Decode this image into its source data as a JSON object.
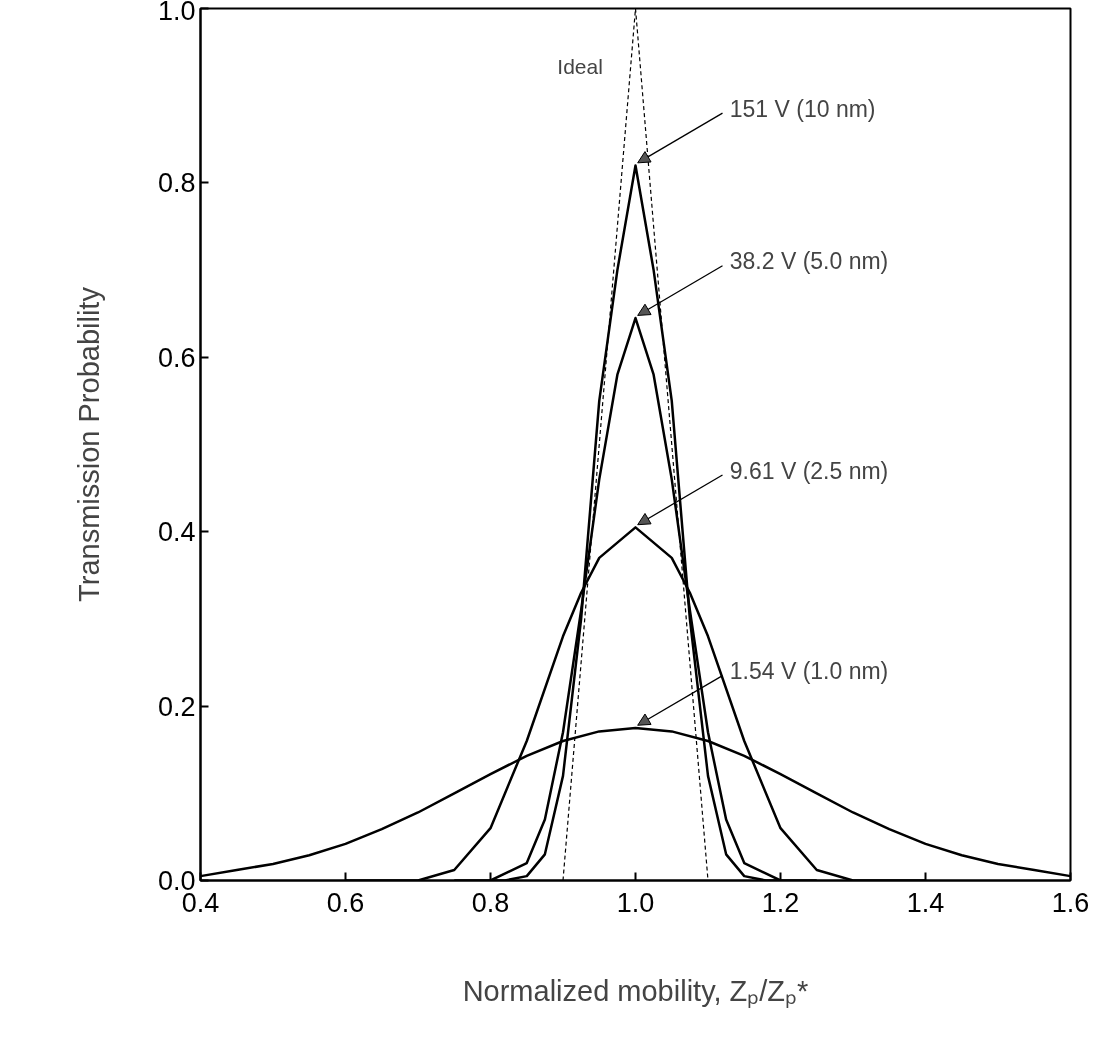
{
  "chart_data": {
    "type": "line",
    "xlabel": "Normalized mobility, Zₚ/Zₚ*",
    "ylabel": "Transmission Probability",
    "xlim": [
      0.4,
      1.6
    ],
    "ylim": [
      0,
      1.0
    ],
    "xticks": [
      0.4,
      0.6,
      0.8,
      {
        "value": 1,
        "label": "1.0"
      },
      1.2,
      1.4,
      1.6
    ],
    "yticks": [
      {
        "value": 0,
        "label": "0.0"
      },
      0.2,
      0.4,
      0.6,
      0.8,
      {
        "value": 1,
        "label": "1.0"
      }
    ],
    "grid": false,
    "legend": false,
    "series": [
      {
        "name": "Ideal",
        "color": "#000000",
        "line_style": "dashed",
        "x": [
          0.9,
          1.0,
          1.1
        ],
        "values": [
          0,
          1.0,
          0
        ]
      },
      {
        "name": "151 V (10 nm)",
        "color": "#000000",
        "line_style": "solid",
        "x": [
          0.8,
          0.82,
          0.85,
          0.875,
          0.9,
          0.925,
          0.95,
          0.975,
          1.0,
          1.025,
          1.05,
          1.075,
          1.1,
          1.125,
          1.15,
          1.18,
          1.2
        ],
        "values": [
          0,
          0,
          0.005,
          0.03,
          0.12,
          0.3,
          0.55,
          0.7,
          0.82,
          0.7,
          0.55,
          0.3,
          0.12,
          0.03,
          0.005,
          0,
          0
        ]
      },
      {
        "name": "38.2 V (5.0 nm)",
        "color": "#000000",
        "line_style": "solid",
        "x": [
          0.75,
          0.8,
          0.85,
          0.875,
          0.9,
          0.925,
          0.95,
          0.975,
          1.0,
          1.025,
          1.05,
          1.075,
          1.1,
          1.125,
          1.15,
          1.2,
          1.25
        ],
        "values": [
          0,
          0,
          0.02,
          0.07,
          0.17,
          0.31,
          0.46,
          0.58,
          0.645,
          0.58,
          0.46,
          0.31,
          0.17,
          0.07,
          0.02,
          0,
          0
        ]
      },
      {
        "name": "9.61 V (2.5 nm)",
        "color": "#000000",
        "line_style": "solid",
        "x": [
          0.6,
          0.7,
          0.75,
          0.8,
          0.85,
          0.9,
          0.925,
          0.95,
          1.0,
          1.05,
          1.075,
          1.1,
          1.15,
          1.2,
          1.25,
          1.3,
          1.4
        ],
        "values": [
          0,
          0,
          0.012,
          0.06,
          0.16,
          0.28,
          0.33,
          0.37,
          0.405,
          0.37,
          0.33,
          0.28,
          0.16,
          0.06,
          0.012,
          0,
          0
        ]
      },
      {
        "name": "1.54 V (1.0 nm)",
        "color": "#000000",
        "line_style": "solid",
        "x": [
          0.4,
          0.45,
          0.5,
          0.55,
          0.6,
          0.65,
          0.7,
          0.75,
          0.8,
          0.85,
          0.9,
          0.95,
          1.0,
          1.05,
          1.1,
          1.15,
          1.2,
          1.25,
          1.3,
          1.35,
          1.4,
          1.45,
          1.5,
          1.55,
          1.6
        ],
        "values": [
          0.005,
          0.012,
          0.019,
          0.029,
          0.042,
          0.059,
          0.078,
          0.1,
          0.122,
          0.143,
          0.16,
          0.171,
          0.175,
          0.171,
          0.16,
          0.143,
          0.122,
          0.1,
          0.078,
          0.059,
          0.042,
          0.029,
          0.019,
          0.012,
          0.005
        ]
      }
    ]
  }
}
